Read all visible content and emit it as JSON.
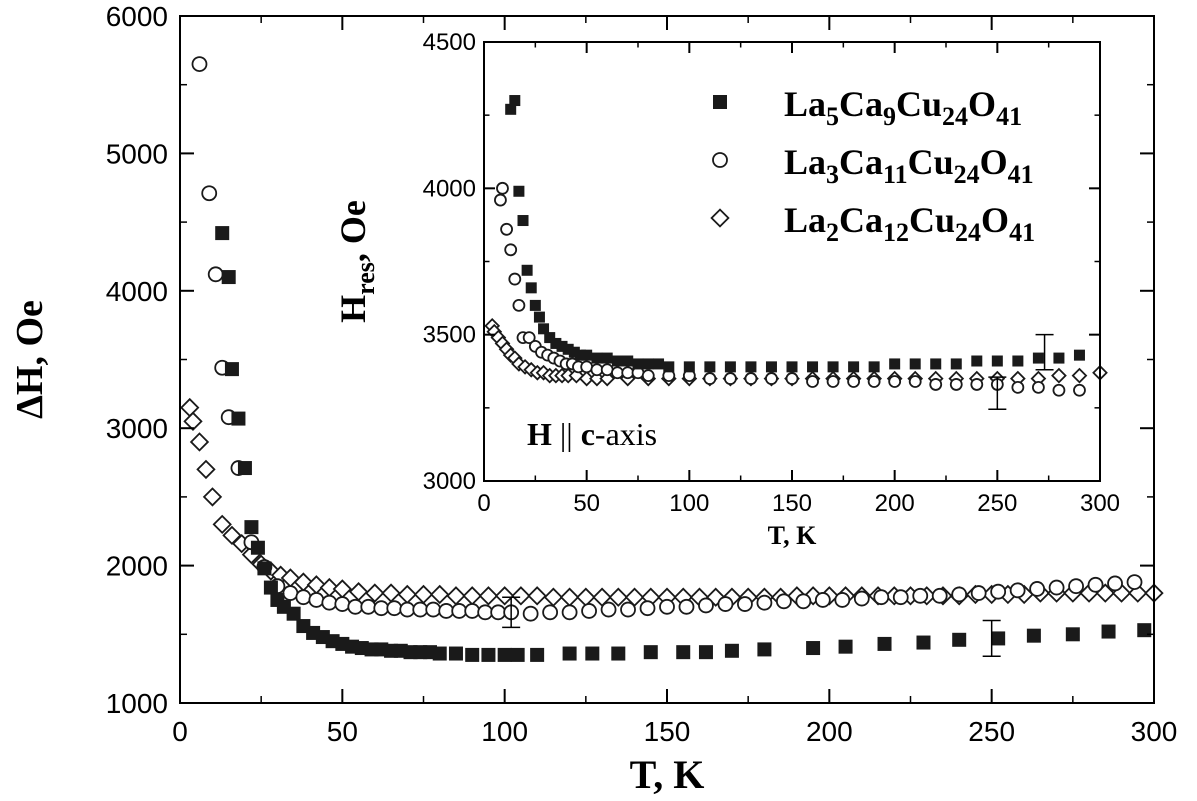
{
  "chart_data": [
    {
      "type": "scatter",
      "xlabel": "T, K",
      "ylabel": "ΔH, Oe",
      "xlim": [
        0,
        300
      ],
      "ylim": [
        1000,
        6000
      ],
      "xticks": [
        "0",
        "50",
        "100",
        "150",
        "200",
        "250",
        "300"
      ],
      "yticks": [
        "1000",
        "2000",
        "3000",
        "4000",
        "5000",
        "6000"
      ],
      "series": [
        {
          "name": "La5Ca9Cu24O41",
          "marker": "filled-square",
          "color": "#1a1a1a",
          "x": [
            13,
            15,
            16,
            18,
            20,
            22,
            24,
            26,
            28,
            30,
            32,
            35,
            38,
            41,
            44,
            47,
            50,
            53,
            56,
            59,
            62,
            65,
            68,
            71,
            74,
            77,
            80,
            85,
            90,
            95,
            100,
            104,
            110,
            120,
            127,
            135,
            145,
            155,
            162,
            170,
            180,
            195,
            205,
            217,
            229,
            240,
            252,
            263,
            275,
            286,
            297
          ],
          "y": [
            4420,
            4100,
            3430,
            3070,
            2710,
            2280,
            2130,
            1980,
            1840,
            1750,
            1700,
            1650,
            1560,
            1510,
            1480,
            1450,
            1430,
            1410,
            1400,
            1390,
            1390,
            1380,
            1380,
            1370,
            1370,
            1370,
            1360,
            1360,
            1350,
            1350,
            1350,
            1350,
            1350,
            1360,
            1360,
            1360,
            1370,
            1370,
            1370,
            1380,
            1390,
            1400,
            1410,
            1430,
            1440,
            1460,
            1470,
            1490,
            1500,
            1520,
            1530
          ]
        },
        {
          "name": "La3Ca11Cu24O41",
          "marker": "open-circle",
          "color": "#1a1a1a",
          "x": [
            6,
            9,
            11,
            13,
            15,
            18,
            22,
            26,
            30,
            34,
            38,
            42,
            46,
            50,
            54,
            58,
            62,
            66,
            70,
            74,
            78,
            82,
            86,
            90,
            94,
            98,
            102,
            108,
            114,
            120,
            126,
            132,
            138,
            144,
            150,
            156,
            162,
            168,
            174,
            180,
            186,
            192,
            198,
            204,
            210,
            216,
            222,
            228,
            234,
            240,
            246,
            252,
            258,
            264,
            270,
            276,
            282,
            288,
            294
          ],
          "y": [
            5650,
            4710,
            4120,
            3440,
            3080,
            2710,
            2170,
            1990,
            1850,
            1800,
            1770,
            1750,
            1730,
            1720,
            1700,
            1700,
            1690,
            1690,
            1680,
            1680,
            1680,
            1670,
            1670,
            1670,
            1660,
            1660,
            1660,
            1650,
            1660,
            1660,
            1670,
            1680,
            1680,
            1690,
            1700,
            1700,
            1710,
            1720,
            1720,
            1730,
            1740,
            1740,
            1750,
            1750,
            1760,
            1770,
            1770,
            1780,
            1780,
            1790,
            1800,
            1810,
            1820,
            1830,
            1840,
            1850,
            1860,
            1870,
            1880
          ]
        },
        {
          "name": "La2Ca12Cu24O41",
          "marker": "open-diamond",
          "color": "#1a1a1a",
          "x": [
            3,
            4,
            6,
            8,
            10,
            13,
            16,
            19,
            22,
            25,
            28,
            31,
            34,
            38,
            42,
            46,
            50,
            55,
            60,
            65,
            70,
            75,
            80,
            85,
            90,
            95,
            100,
            105,
            110,
            115,
            120,
            125,
            130,
            135,
            140,
            145,
            150,
            155,
            160,
            165,
            170,
            175,
            180,
            185,
            190,
            195,
            200,
            205,
            210,
            215,
            220,
            225,
            230,
            235,
            240,
            245,
            250,
            255,
            260,
            265,
            270,
            275,
            280,
            285,
            290,
            295,
            300
          ],
          "y": [
            3150,
            3050,
            2900,
            2700,
            2500,
            2300,
            2220,
            2160,
            2080,
            2010,
            1960,
            1930,
            1910,
            1880,
            1860,
            1840,
            1830,
            1810,
            1800,
            1800,
            1790,
            1790,
            1790,
            1780,
            1780,
            1780,
            1780,
            1780,
            1780,
            1770,
            1770,
            1770,
            1770,
            1770,
            1770,
            1770,
            1770,
            1770,
            1770,
            1770,
            1770,
            1770,
            1770,
            1770,
            1780,
            1780,
            1780,
            1780,
            1780,
            1780,
            1780,
            1780,
            1780,
            1780,
            1780,
            1790,
            1790,
            1790,
            1790,
            1800,
            1800,
            1800,
            1800,
            1800,
            1800,
            1800,
            1800
          ]
        }
      ],
      "error_bars": [
        {
          "x": 102,
          "y": 1660,
          "err": 110
        },
        {
          "x": 250,
          "y": 1470,
          "err": 130
        }
      ]
    },
    {
      "type": "scatter",
      "xlabel": "T, K",
      "ylabel": "Hres, Oe",
      "xlim": [
        0,
        300
      ],
      "ylim": [
        3000,
        4500
      ],
      "xticks": [
        "0",
        "50",
        "100",
        "150",
        "200",
        "250",
        "300"
      ],
      "yticks": [
        "3000",
        "3500",
        "4000",
        "4500"
      ],
      "annotation": "H || c-axis",
      "legend_location": "top-right",
      "series": [
        {
          "name": "La5Ca9Cu24O41",
          "marker": "filled-square",
          "color": "#1a1a1a",
          "x": [
            13,
            15,
            17,
            19,
            21,
            23,
            25,
            27,
            29,
            32,
            35,
            38,
            41,
            44,
            47,
            50,
            55,
            60,
            65,
            70,
            75,
            80,
            85,
            90,
            100,
            110,
            120,
            130,
            140,
            150,
            160,
            170,
            180,
            190,
            200,
            210,
            220,
            230,
            240,
            250,
            260,
            270,
            280,
            290
          ],
          "y": [
            4270,
            4300,
            3990,
            3890,
            3720,
            3660,
            3600,
            3560,
            3520,
            3490,
            3470,
            3460,
            3450,
            3440,
            3430,
            3430,
            3420,
            3420,
            3410,
            3410,
            3400,
            3400,
            3400,
            3390,
            3390,
            3390,
            3390,
            3390,
            3390,
            3390,
            3390,
            3390,
            3390,
            3390,
            3400,
            3400,
            3400,
            3400,
            3410,
            3410,
            3410,
            3420,
            3420,
            3430
          ]
        },
        {
          "name": "La3Ca11Cu24O41",
          "marker": "open-circle",
          "color": "#1a1a1a",
          "x": [
            8,
            9,
            11,
            13,
            15,
            17,
            19,
            22,
            25,
            28,
            31,
            34,
            37,
            40,
            43,
            46,
            50,
            55,
            60,
            65,
            70,
            75,
            80,
            90,
            100,
            110,
            120,
            130,
            140,
            150,
            160,
            170,
            180,
            190,
            200,
            210,
            220,
            230,
            240,
            250,
            260,
            270,
            280,
            290
          ],
          "y": [
            3960,
            4000,
            3860,
            3790,
            3690,
            3600,
            3490,
            3490,
            3460,
            3440,
            3430,
            3420,
            3410,
            3400,
            3400,
            3390,
            3390,
            3380,
            3380,
            3370,
            3370,
            3370,
            3360,
            3360,
            3360,
            3350,
            3350,
            3350,
            3350,
            3350,
            3340,
            3340,
            3340,
            3340,
            3340,
            3340,
            3330,
            3330,
            3330,
            3330,
            3320,
            3320,
            3310,
            3310
          ]
        },
        {
          "name": "La2Ca12Cu24O41",
          "marker": "open-diamond",
          "color": "#1a1a1a",
          "x": [
            4,
            5,
            7,
            9,
            11,
            13,
            15,
            17,
            20,
            23,
            26,
            29,
            32,
            35,
            38,
            41,
            45,
            50,
            55,
            60,
            70,
            80,
            90,
            100,
            110,
            120,
            130,
            140,
            150,
            160,
            170,
            180,
            190,
            200,
            210,
            220,
            230,
            240,
            250,
            260,
            270,
            280,
            290,
            300
          ],
          "y": [
            3530,
            3510,
            3490,
            3470,
            3450,
            3430,
            3420,
            3400,
            3390,
            3380,
            3370,
            3370,
            3360,
            3360,
            3360,
            3360,
            3360,
            3350,
            3350,
            3350,
            3350,
            3350,
            3350,
            3350,
            3350,
            3350,
            3350,
            3350,
            3350,
            3350,
            3350,
            3350,
            3350,
            3350,
            3350,
            3350,
            3350,
            3350,
            3350,
            3350,
            3350,
            3360,
            3360,
            3370
          ]
        }
      ],
      "error_bars": [
        {
          "x": 250,
          "y": 3300,
          "err": 55
        },
        {
          "x": 273,
          "y": 3440,
          "err": 60
        }
      ]
    }
  ]
}
